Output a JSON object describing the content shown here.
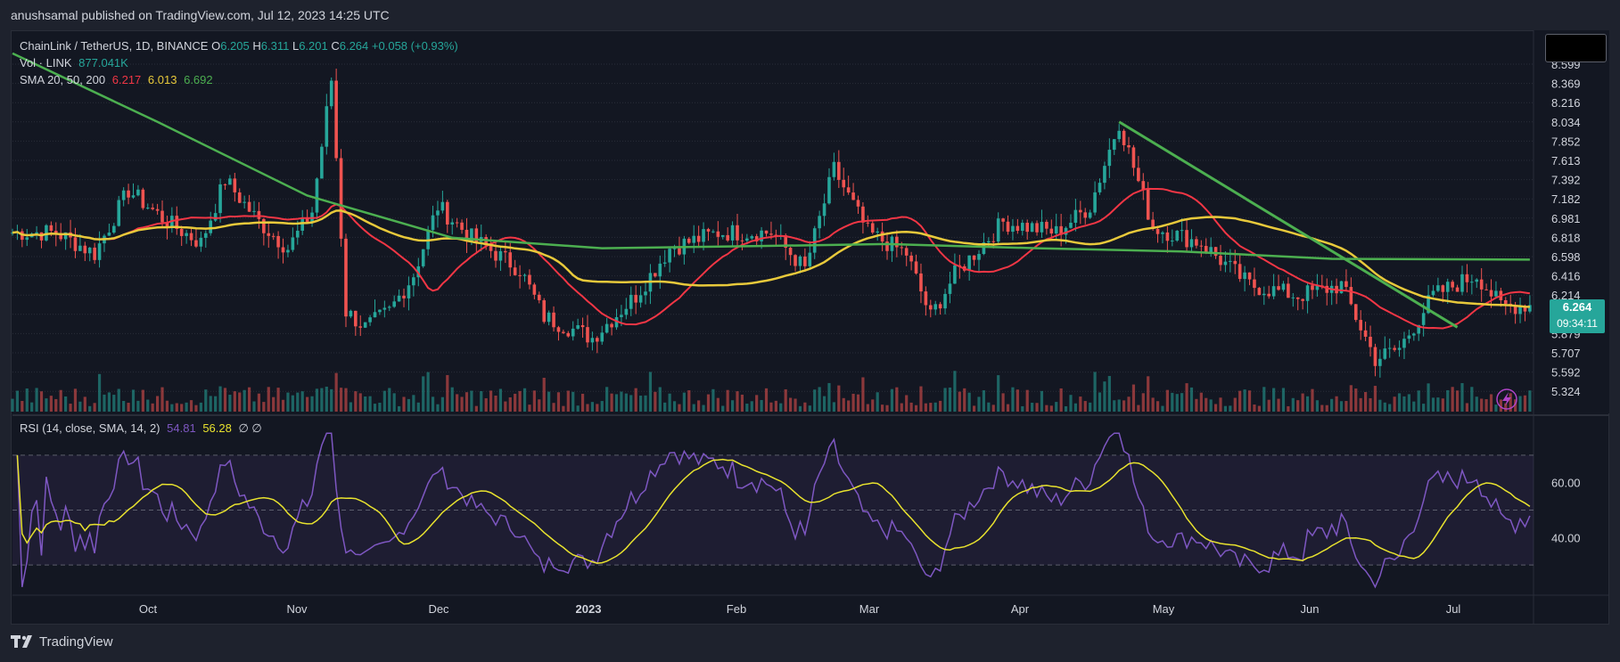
{
  "header": {
    "published_text": "anushsamal published on TradingView.com, Jul 12, 2023 14:25 UTC"
  },
  "legend": {
    "symbol": "ChainLink / TetherUS, 1D, BINANCE",
    "ohlc": [
      {
        "k": "O",
        "v": "6.205"
      },
      {
        "k": "H",
        "v": "6.311"
      },
      {
        "k": "L",
        "v": "6.201"
      },
      {
        "k": "C",
        "v": "6.264"
      }
    ],
    "change": "+0.058 (+0.93%)",
    "volume_label": "Vol · LINK",
    "volume_value": "877.041K",
    "sma_label": "SMA 20, 50, 200",
    "sma_values": [
      "6.217",
      "6.013",
      "6.692"
    ]
  },
  "price_axis": {
    "labels": [
      "8.599",
      "8.369",
      "8.216",
      "8.034",
      "7.852",
      "7.613",
      "7.392",
      "7.182",
      "6.981",
      "6.818",
      "6.598",
      "6.416",
      "6.214",
      "6.042",
      "5.879",
      "5.707",
      "5.592",
      "5.324"
    ],
    "last_price": "6.264",
    "countdown": "09:34:11"
  },
  "time_axis": {
    "labels": [
      "Oct",
      "Nov",
      "Dec",
      "2023",
      "Feb",
      "Mar",
      "Apr",
      "May",
      "Jun",
      "Jul"
    ]
  },
  "rsi": {
    "label": "RSI (14, close, SMA, 14, 2)",
    "value": "54.81",
    "sma_value": "56.28",
    "extra": "∅ ∅",
    "axis_labels": [
      "60.00",
      "40.00"
    ]
  },
  "footer": {
    "brand": "TradingView"
  },
  "colors": {
    "background": "#131722",
    "up": "#26a69a",
    "down": "#ef5350",
    "sma20": "#f23645",
    "sma50": "#e8c93b",
    "sma200": "#4caf50",
    "rsi": "#7e57c2",
    "rsi_sma": "#e8e22e",
    "trendline": "#4caf50"
  },
  "chart_data": {
    "type": "candlestick",
    "title": "ChainLink / TetherUS, 1D, BINANCE",
    "x_range": [
      "Sep 2022",
      "Jul 2023"
    ],
    "ylim": [
      5.3,
      8.7
    ],
    "close_path": [
      {
        "d": "Sep 10",
        "v": 6.95
      },
      {
        "d": "Sep 18",
        "v": 6.75
      },
      {
        "d": "Sep 25",
        "v": 7.35
      },
      {
        "d": "Oct 3",
        "v": 7.05
      },
      {
        "d": "Oct 10",
        "v": 6.85
      },
      {
        "d": "Oct 15",
        "v": 7.45
      },
      {
        "d": "Oct 22",
        "v": 7.05
      },
      {
        "d": "Oct 28",
        "v": 6.8
      },
      {
        "d": "Nov 2",
        "v": 7.15
      },
      {
        "d": "Nov 6",
        "v": 8.4
      },
      {
        "d": "Nov 9",
        "v": 6.2
      },
      {
        "d": "Nov 13",
        "v": 6.05
      },
      {
        "d": "Nov 18",
        "v": 6.2
      },
      {
        "d": "Nov 23",
        "v": 6.55
      },
      {
        "d": "Nov 28",
        "v": 7.2
      },
      {
        "d": "Dec 5",
        "v": 6.9
      },
      {
        "d": "Dec 15",
        "v": 6.6
      },
      {
        "d": "Dec 20",
        "v": 6.15
      },
      {
        "d": "Dec 30",
        "v": 5.95
      },
      {
        "d": "Jan 8",
        "v": 6.35
      },
      {
        "d": "Jan 15",
        "v": 6.8
      },
      {
        "d": "Jan 25",
        "v": 6.95
      },
      {
        "d": "Feb 5",
        "v": 6.95
      },
      {
        "d": "Feb 12",
        "v": 6.6
      },
      {
        "d": "Feb 18",
        "v": 7.55
      },
      {
        "d": "Feb 25",
        "v": 6.95
      },
      {
        "d": "Mar 5",
        "v": 6.75
      },
      {
        "d": "Mar 10",
        "v": 6.15
      },
      {
        "d": "Mar 15",
        "v": 6.55
      },
      {
        "d": "Mar 25",
        "v": 7.05
      },
      {
        "d": "Apr 5",
        "v": 6.95
      },
      {
        "d": "Apr 12",
        "v": 7.2
      },
      {
        "d": "Apr 18",
        "v": 8.0
      },
      {
        "d": "Apr 25",
        "v": 7.0
      },
      {
        "d": "May 5",
        "v": 6.85
      },
      {
        "d": "May 15",
        "v": 6.45
      },
      {
        "d": "May 25",
        "v": 6.35
      },
      {
        "d": "Jun 3",
        "v": 6.45
      },
      {
        "d": "Jun 10",
        "v": 5.75
      },
      {
        "d": "Jun 15",
        "v": 5.85
      },
      {
        "d": "Jun 22",
        "v": 6.35
      },
      {
        "d": "Jul 1",
        "v": 6.55
      },
      {
        "d": "Jul 6",
        "v": 6.25
      },
      {
        "d": "Jul 12",
        "v": 6.264
      }
    ],
    "sma200_path": [
      {
        "d": "Sep 1",
        "v": 8.65
      },
      {
        "d": "Oct 1",
        "v": 8.0
      },
      {
        "d": "Nov 1",
        "v": 7.3
      },
      {
        "d": "Dec 1",
        "v": 6.9
      },
      {
        "d": "Jan 1",
        "v": 6.8
      },
      {
        "d": "Feb 1",
        "v": 6.82
      },
      {
        "d": "Mar 1",
        "v": 6.84
      },
      {
        "d": "Apr 1",
        "v": 6.8
      },
      {
        "d": "May 1",
        "v": 6.77
      },
      {
        "d": "Jun 1",
        "v": 6.7
      },
      {
        "d": "Jul 12",
        "v": 6.692
      }
    ],
    "trendline": {
      "from": {
        "d": "Apr 18",
        "v": 8.0
      },
      "to": {
        "d": "Jun 27",
        "v": 6.05
      }
    },
    "rsi_ylim": [
      20,
      80
    ],
    "rsi_bands": [
      70,
      30
    ],
    "rsi_last": 54.81,
    "rsi_sma_last": 56.28
  }
}
